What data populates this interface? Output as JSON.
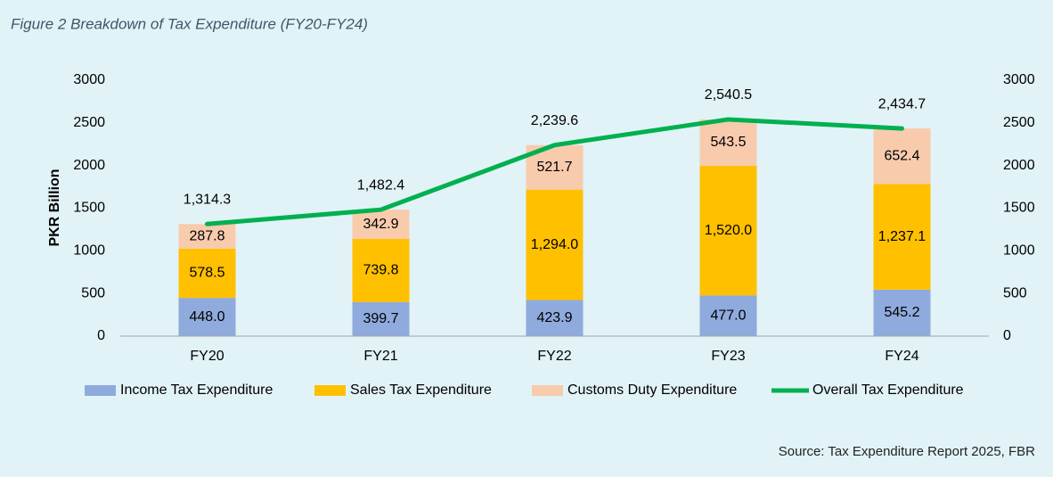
{
  "chart_data": {
    "type": "bar",
    "title": "Figure 2 Breakdown of Tax Expenditure (FY20-FY24)",
    "y_label": "PKR Billion",
    "source": "Source: Tax Expenditure Report 2025, FBR",
    "categories": [
      "FY20",
      "FY21",
      "FY22",
      "FY23",
      "FY24"
    ],
    "stacked": true,
    "series": [
      {
        "name": "Income Tax Expenditure",
        "color": "#8faadc",
        "values": [
          448.0,
          399.7,
          423.9,
          477.0,
          545.2
        ],
        "value_labels": [
          "448.0",
          "399.7",
          "423.9",
          "477.0",
          "545.2"
        ]
      },
      {
        "name": "Sales Tax Expenditure",
        "color": "#ffc000",
        "values": [
          578.5,
          739.8,
          1294.0,
          1520.0,
          1237.1
        ],
        "value_labels": [
          "578.5",
          "739.8",
          "1,294.0",
          "1,520.0",
          "1,237.1"
        ]
      },
      {
        "name": "Customs Duty Expenditure",
        "color": "#f8cbad",
        "values": [
          287.8,
          342.9,
          521.7,
          543.5,
          652.4
        ],
        "value_labels": [
          "287.8",
          "342.9",
          "521.7",
          "543.5",
          "652.4"
        ]
      },
      {
        "name": "Overall Tax Expenditure",
        "color": "#00b050",
        "type": "line",
        "axis": "y2",
        "values": [
          1314.3,
          1482.4,
          2239.6,
          2540.5,
          2434.7
        ],
        "value_labels": [
          "1,314.3",
          "1,482.4",
          "2,239.6",
          "2,540.5",
          "2,434.7"
        ]
      }
    ],
    "ylim": [
      0,
      3000
    ],
    "yticks": [
      0,
      500,
      1000,
      1500,
      2000,
      2500,
      3000
    ],
    "y2lim": [
      0,
      3000
    ],
    "y2ticks": [
      0,
      500,
      1000,
      1500,
      2000,
      2500,
      3000
    ],
    "grid": false,
    "legend": "bottom"
  }
}
